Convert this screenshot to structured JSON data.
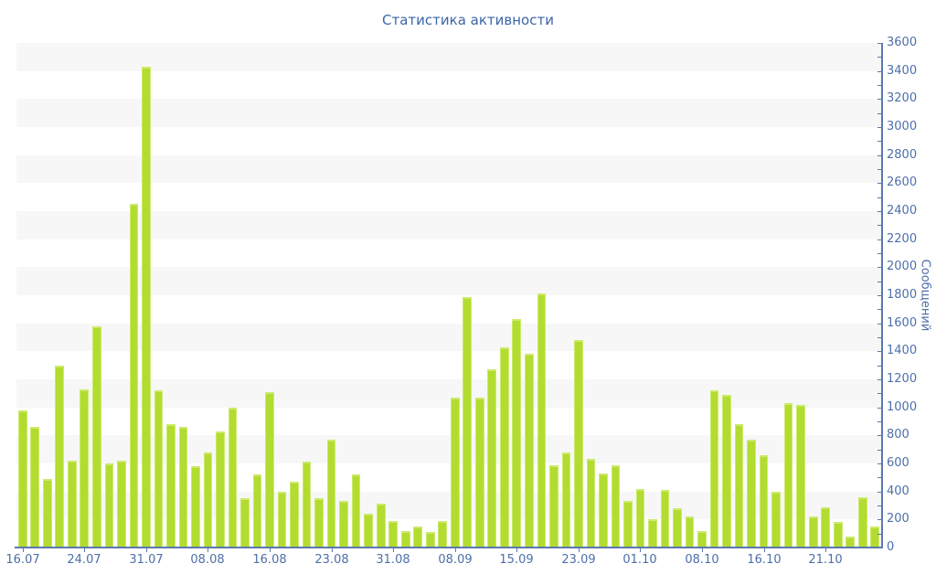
{
  "chart_data": {
    "type": "bar",
    "title": "Статистика активности",
    "ylabel": "Сообщений",
    "xlabel": "",
    "ylim": [
      0,
      3600
    ],
    "y_major_step": 200,
    "y_minor_step": 100,
    "legend": "none",
    "grid": "alternating horizontal shaded bands, 200 units tall, shaded from 200-400 upward every other band",
    "bar_count": 70,
    "x_tick_labels": [
      "16.07",
      "24.07",
      "31.07",
      "08.08",
      "16.08",
      "23.08",
      "31.08",
      "08.09",
      "15.09",
      "23.09",
      "01.10",
      "08.10",
      "16.10",
      "21.10"
    ],
    "x_tick_bar_indices": [
      0,
      5,
      10,
      15,
      20,
      25,
      30,
      35,
      40,
      45,
      50,
      55,
      60,
      65
    ],
    "values": [
      980,
      860,
      490,
      1300,
      620,
      1130,
      1580,
      600,
      620,
      2450,
      3430,
      1120,
      880,
      860,
      580,
      680,
      830,
      1000,
      350,
      520,
      1110,
      400,
      470,
      610,
      350,
      770,
      330,
      520,
      240,
      310,
      190,
      120,
      150,
      110,
      190,
      1070,
      1790,
      1070,
      1270,
      1430,
      1630,
      1380,
      1810,
      590,
      680,
      1480,
      630,
      530,
      590,
      330,
      420,
      200,
      410,
      280,
      220,
      120,
      1120,
      1090,
      880,
      770,
      660,
      400,
      1030,
      1020,
      220,
      290,
      180,
      80,
      360,
      150
    ],
    "colors": {
      "bar": "#b3dc30",
      "bar_highlight": "#cdea6e",
      "band_shaded": "#f7f7f8",
      "band_plain": "#ffffff",
      "axis": "#5b79b0",
      "tick_label": "#4d6fa8",
      "title": "#3b65a8",
      "background": "#ffffff"
    }
  }
}
